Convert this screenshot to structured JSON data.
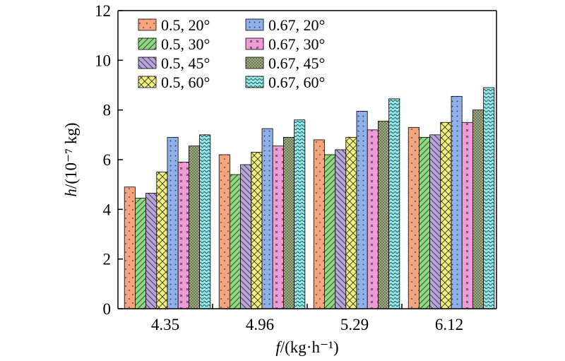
{
  "chart_data": {
    "type": "bar",
    "xlabel_italic": "f",
    "xlabel_rest": "/(kg·h⁻¹)",
    "ylabel_italic": "h",
    "ylabel_rest": "/(10⁻⁷ kg)",
    "categories": [
      "4.35",
      "4.96",
      "5.29",
      "6.12"
    ],
    "ylim": [
      0,
      12
    ],
    "yticks": [
      "0",
      "2",
      "4",
      "6",
      "8",
      "10",
      "12"
    ],
    "grid": false,
    "legend_position": "top-left",
    "series": [
      {
        "name": "0.5, 20°",
        "values": [
          4.9,
          6.2,
          6.8,
          7.3
        ],
        "color": "#f4a57d",
        "pattern": "dots-sparse"
      },
      {
        "name": "0.5, 30°",
        "values": [
          4.45,
          5.4,
          6.2,
          6.9
        ],
        "color": "#8ed97f",
        "pattern": "diag-forward"
      },
      {
        "name": "0.5, 45°",
        "values": [
          4.65,
          5.8,
          6.4,
          7.0
        ],
        "color": "#b8a3dd",
        "pattern": "diag-back"
      },
      {
        "name": "0.5, 60°",
        "values": [
          5.5,
          6.3,
          6.9,
          7.5
        ],
        "color": "#f3f07c",
        "pattern": "crosshatch"
      },
      {
        "name": "0.67, 20°",
        "values": [
          6.9,
          7.25,
          7.95,
          8.55
        ],
        "color": "#8fb0ea",
        "pattern": "dots-grid"
      },
      {
        "name": "0.67, 30°",
        "values": [
          5.9,
          6.55,
          7.2,
          7.5
        ],
        "color": "#ef9bd8",
        "pattern": "small-cross"
      },
      {
        "name": "0.67, 45°",
        "values": [
          6.55,
          6.9,
          7.55,
          8.0
        ],
        "color": "#9fae7e",
        "pattern": "dots-dense"
      },
      {
        "name": "0.67, 60°",
        "values": [
          7.0,
          7.6,
          8.45,
          8.9
        ],
        "color": "#8ee8ea",
        "pattern": "waves"
      }
    ]
  }
}
